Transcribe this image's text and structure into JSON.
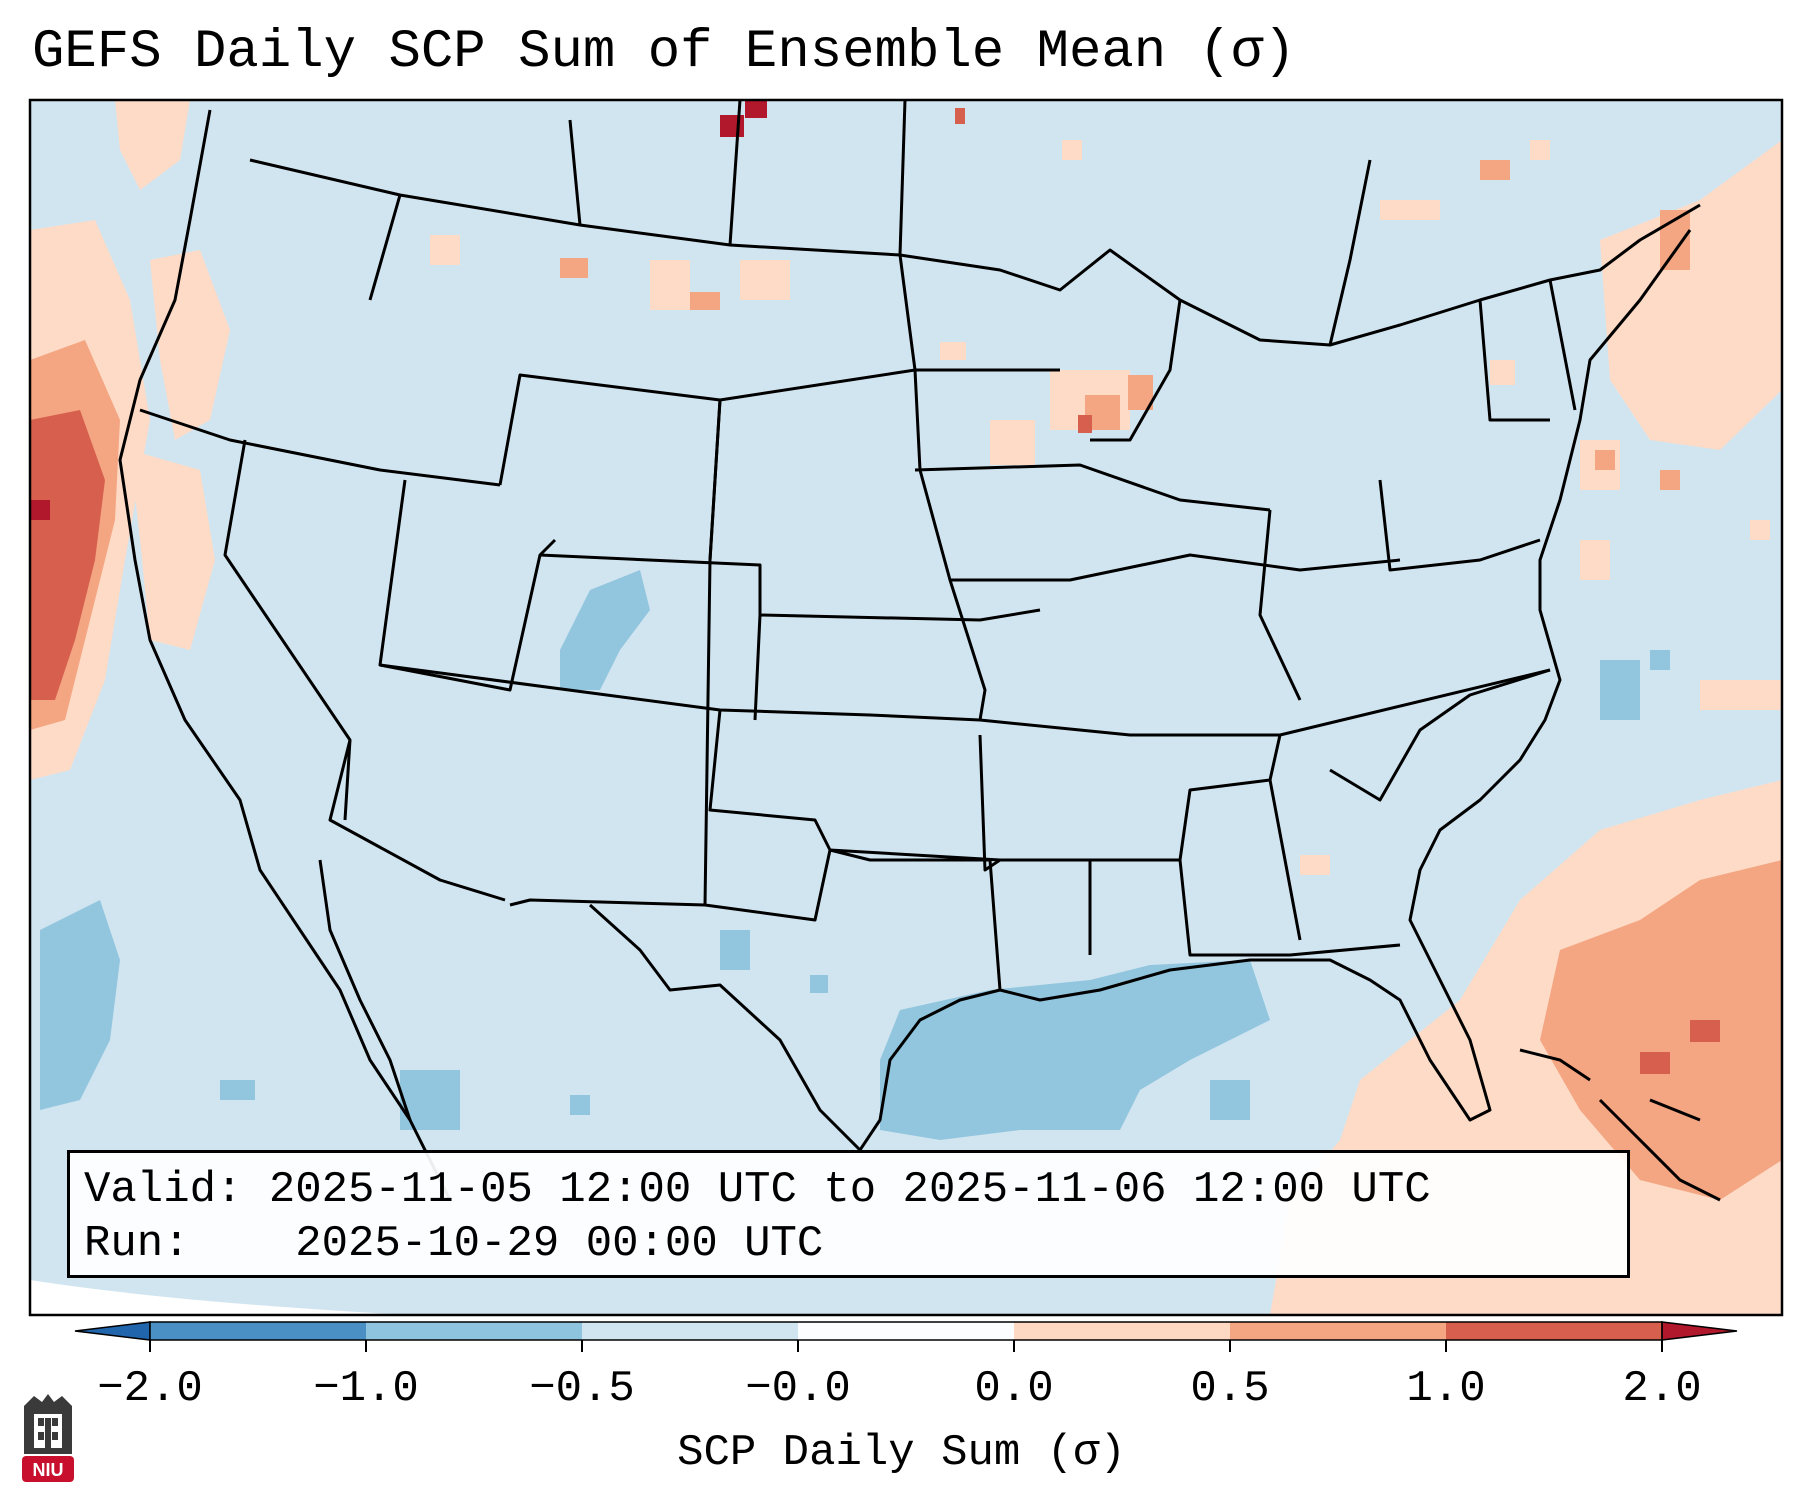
{
  "title": "GEFS Daily SCP Sum of Ensemble Mean (σ)",
  "info": {
    "valid_label": "Valid:",
    "valid_value": "2025-11-05 12:00 UTC to 2025-11-06 12:00 UTC",
    "run_label": "Run:",
    "run_value": "2025-10-29 00:00 UTC"
  },
  "colorbar": {
    "label": "SCP Daily Sum (σ)",
    "ticks": [
      "−2.0",
      "−1.0",
      "−0.5",
      "−0.0",
      "0.0",
      "0.5",
      "1.0",
      "2.0"
    ],
    "bins": [
      {
        "color": "#4a90c4"
      },
      {
        "color": "#8ec4de"
      },
      {
        "color": "#d1e5f0"
      },
      {
        "color": "#fbfdff"
      },
      {
        "color": "#fdd9c4"
      },
      {
        "color": "#f4a582"
      },
      {
        "color": "#d6604d"
      }
    ],
    "under_color": "#2166ac",
    "over_color": "#b2182b"
  },
  "colors": {
    "background_field": "#d1e5f0",
    "light_blue": "#92c5de",
    "light_red": "#fddbc7",
    "mid_red": "#f4a582",
    "dark_red": "#d6604d",
    "deep_red": "#b2182b"
  },
  "logo": {
    "text": "NIU"
  }
}
